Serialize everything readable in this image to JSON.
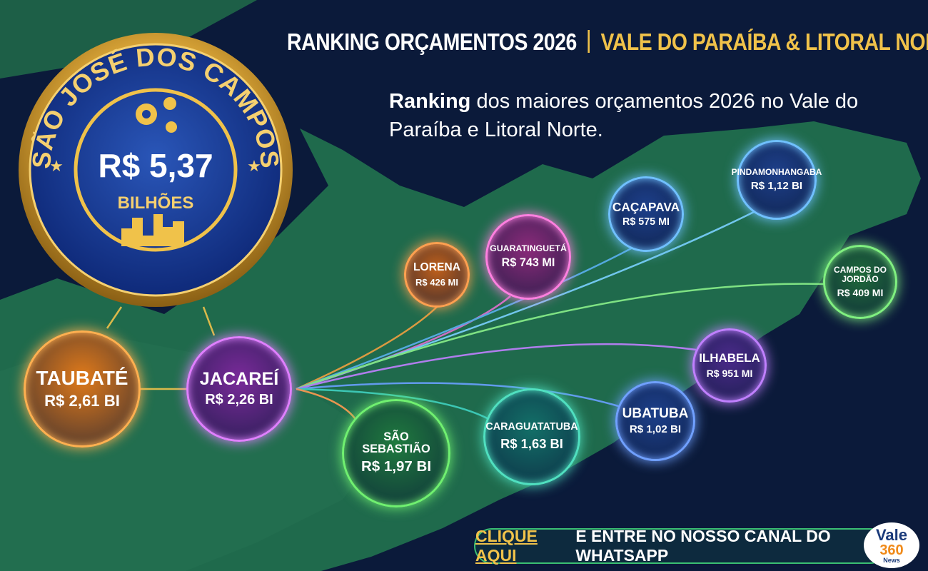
{
  "header": {
    "title_left": "RANKING ORÇAMENTOS 2026",
    "title_right": "VALE DO PARAÍBA & LITORAL NORTE",
    "subtitle_bold": "Ranking",
    "subtitle_rest": "dos maiores orçamentos 2026 no Vale do Paraíba e Litoral Norte."
  },
  "featured": {
    "city": "SÃO JOSÉ DOS CAMPOS",
    "amount": "R$ 5,37",
    "unit": "BILHÕES"
  },
  "nodes": [
    {
      "city": "TAUBATÉ",
      "amount": "R$ 2,61 BI"
    },
    {
      "city": "JACAREÍ",
      "amount": "R$ 2,26 BI"
    },
    {
      "city": "SÃO SEBASTIÃO",
      "amount": "R$ 1,97 BI"
    },
    {
      "city": "CARAGUATATUBA",
      "amount": "R$ 1,63 BI"
    },
    {
      "city": "PINDAMONHANGABA",
      "amount": "R$ 1,12 BI"
    },
    {
      "city": "UBATUBA",
      "amount": "R$ 1,02 BI"
    },
    {
      "city": "ILHABELA",
      "amount": "R$ 951 MI"
    },
    {
      "city": "GUARATINGUETÁ",
      "amount": "R$ 743 MI"
    },
    {
      "city": "CAÇAPAVA",
      "amount": "R$ 575 MI"
    },
    {
      "city": "LORENA",
      "amount": "R$ 426 MI"
    },
    {
      "city": "CAMPOS DO JORDÃO",
      "amount": "R$ 409 MI"
    }
  ],
  "cta": {
    "highlight": "CLIQUE AQUI",
    "rest": "E ENTRE NO NOSSO CANAL DO WHATSAPP"
  },
  "logo": {
    "name": "Vale",
    "number": "360",
    "sub": "News"
  }
}
